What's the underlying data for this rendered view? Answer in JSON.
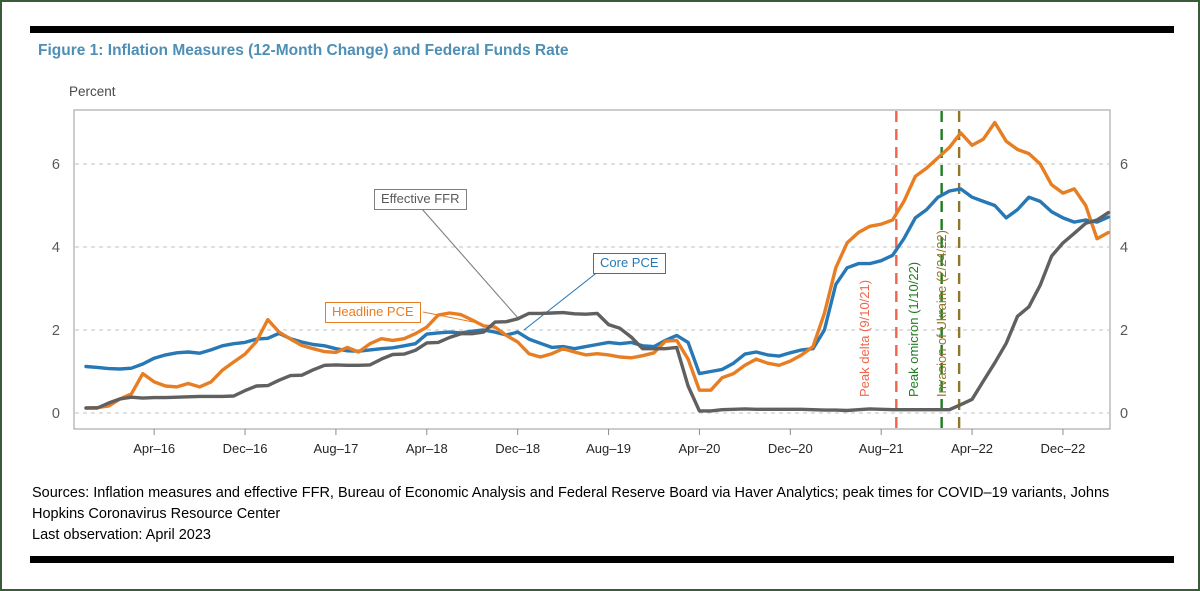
{
  "page": {
    "title": "Figure 1: Inflation Measures (12-Month Change) and Federal Funds Rate",
    "unit_label": "Percent",
    "sources": "Sources: Inflation measures and effective FFR, Bureau of Economic Analysis and Federal Reserve Board via Haver Analytics; peak times for COVID–19 variants, Johns Hopkins Coronavirus Resource Center",
    "last_observation": "Last observation: April 2023"
  },
  "chart_data": {
    "type": "line",
    "title": "Figure 1: Inflation Measures (12-Month Change) and Federal Funds Rate",
    "ylabel": "Percent",
    "ylim": [
      -0.4,
      7.3
    ],
    "y_ticks": [
      0,
      2,
      4,
      6
    ],
    "grid": "horizontal-dashed",
    "y_axis_labels": "both-sides",
    "months": [
      "Oct-15",
      "Nov-15",
      "Dec-15",
      "Jan-16",
      "Feb-16",
      "Mar-16",
      "Apr-16",
      "May-16",
      "Jun-16",
      "Jul-16",
      "Aug-16",
      "Sep-16",
      "Oct-16",
      "Nov-16",
      "Dec-16",
      "Jan-17",
      "Feb-17",
      "Mar-17",
      "Apr-17",
      "May-17",
      "Jun-17",
      "Jul-17",
      "Aug-17",
      "Sep-17",
      "Oct-17",
      "Nov-17",
      "Dec-17",
      "Jan-18",
      "Feb-18",
      "Mar-18",
      "Apr-18",
      "May-18",
      "Jun-18",
      "Jul-18",
      "Aug-18",
      "Sep-18",
      "Oct-18",
      "Nov-18",
      "Dec-18",
      "Jan-19",
      "Feb-19",
      "Mar-19",
      "Apr-19",
      "May-19",
      "Jun-19",
      "Jul-19",
      "Aug-19",
      "Sep-19",
      "Oct-19",
      "Nov-19",
      "Dec-19",
      "Jan-20",
      "Feb-20",
      "Mar-20",
      "Apr-20",
      "May-20",
      "Jun-20",
      "Jul-20",
      "Aug-20",
      "Sep-20",
      "Oct-20",
      "Nov-20",
      "Dec-20",
      "Jan-21",
      "Feb-21",
      "Mar-21",
      "Apr-21",
      "May-21",
      "Jun-21",
      "Jul-21",
      "Aug-21",
      "Sep-21",
      "Oct-21",
      "Nov-21",
      "Dec-21",
      "Jan-22",
      "Feb-22",
      "Mar-22",
      "Apr-22",
      "May-22",
      "Jun-22",
      "Jul-22",
      "Aug-22",
      "Sep-22",
      "Oct-22",
      "Nov-22",
      "Dec-22",
      "Jan-23",
      "Feb-23",
      "Mar-23",
      "Apr-23"
    ],
    "x_ticks": [
      {
        "index": 6,
        "label": "Apr–16"
      },
      {
        "index": 14,
        "label": "Dec–16"
      },
      {
        "index": 22,
        "label": "Aug–17"
      },
      {
        "index": 30,
        "label": "Apr–18"
      },
      {
        "index": 38,
        "label": "Dec–18"
      },
      {
        "index": 46,
        "label": "Aug–19"
      },
      {
        "index": 54,
        "label": "Apr–20"
      },
      {
        "index": 62,
        "label": "Dec–20"
      },
      {
        "index": 70,
        "label": "Aug–21"
      },
      {
        "index": 78,
        "label": "Apr–22"
      },
      {
        "index": 86,
        "label": "Dec–22"
      }
    ],
    "series": [
      {
        "name": "Effective FFR",
        "color": "#606060",
        "values": [
          0.12,
          0.12,
          0.24,
          0.34,
          0.38,
          0.36,
          0.37,
          0.37,
          0.38,
          0.39,
          0.4,
          0.4,
          0.4,
          0.41,
          0.54,
          0.65,
          0.66,
          0.79,
          0.9,
          0.91,
          1.04,
          1.15,
          1.16,
          1.15,
          1.15,
          1.16,
          1.3,
          1.41,
          1.42,
          1.51,
          1.69,
          1.7,
          1.82,
          1.91,
          1.91,
          1.95,
          2.19,
          2.2,
          2.27,
          2.4,
          2.4,
          2.41,
          2.42,
          2.39,
          2.38,
          2.4,
          2.13,
          2.04,
          1.83,
          1.55,
          1.55,
          1.55,
          1.58,
          0.65,
          0.05,
          0.05,
          0.08,
          0.09,
          0.1,
          0.09,
          0.09,
          0.09,
          0.09,
          0.09,
          0.08,
          0.07,
          0.07,
          0.06,
          0.08,
          0.1,
          0.09,
          0.08,
          0.08,
          0.08,
          0.08,
          0.08,
          0.08,
          0.2,
          0.33,
          0.77,
          1.21,
          1.68,
          2.33,
          2.56,
          3.08,
          3.78,
          4.1,
          4.33,
          4.57,
          4.65,
          4.83
        ]
      },
      {
        "name": "Core PCE",
        "color": "#2878B5",
        "values": [
          1.12,
          1.1,
          1.07,
          1.06,
          1.08,
          1.18,
          1.32,
          1.4,
          1.45,
          1.47,
          1.44,
          1.52,
          1.62,
          1.67,
          1.7,
          1.78,
          1.8,
          1.92,
          1.79,
          1.71,
          1.65,
          1.62,
          1.55,
          1.5,
          1.49,
          1.52,
          1.55,
          1.57,
          1.62,
          1.67,
          1.9,
          1.93,
          1.95,
          1.93,
          1.97,
          2.0,
          1.95,
          1.88,
          1.95,
          1.78,
          1.68,
          1.58,
          1.6,
          1.55,
          1.6,
          1.65,
          1.7,
          1.67,
          1.7,
          1.62,
          1.6,
          1.75,
          1.87,
          1.7,
          0.95,
          1.0,
          1.05,
          1.2,
          1.42,
          1.47,
          1.4,
          1.37,
          1.45,
          1.52,
          1.55,
          2.0,
          3.1,
          3.5,
          3.6,
          3.6,
          3.67,
          3.8,
          4.2,
          4.7,
          4.9,
          5.2,
          5.35,
          5.4,
          5.2,
          5.1,
          5.0,
          4.7,
          4.9,
          5.2,
          5.1,
          4.85,
          4.7,
          4.6,
          4.65,
          4.6,
          4.72
        ]
      },
      {
        "name": "Headline PCE",
        "color": "#E87E23",
        "values": [
          0.12,
          0.13,
          0.17,
          0.34,
          0.46,
          0.95,
          0.75,
          0.65,
          0.63,
          0.71,
          0.63,
          0.75,
          1.03,
          1.23,
          1.42,
          1.72,
          2.25,
          1.95,
          1.78,
          1.63,
          1.55,
          1.48,
          1.46,
          1.58,
          1.47,
          1.67,
          1.79,
          1.75,
          1.79,
          1.91,
          2.07,
          2.36,
          2.41,
          2.37,
          2.24,
          2.1,
          2.07,
          1.87,
          1.71,
          1.43,
          1.35,
          1.43,
          1.55,
          1.47,
          1.4,
          1.43,
          1.4,
          1.35,
          1.33,
          1.38,
          1.45,
          1.73,
          1.75,
          1.3,
          0.55,
          0.55,
          0.85,
          0.95,
          1.15,
          1.3,
          1.2,
          1.15,
          1.25,
          1.4,
          1.6,
          2.4,
          3.5,
          4.1,
          4.35,
          4.5,
          4.55,
          4.65,
          5.1,
          5.7,
          5.9,
          6.15,
          6.4,
          6.75,
          6.45,
          6.6,
          7.0,
          6.55,
          6.35,
          6.25,
          6.0,
          5.5,
          5.3,
          5.4,
          5.0,
          4.2,
          4.35
        ]
      }
    ],
    "events": [
      {
        "id": "peak-delta",
        "label": "Peak delta (9/10/21)",
        "date": "9/10/21",
        "month_index": 71.33,
        "color": "#F0654C"
      },
      {
        "id": "peak-omicron",
        "label": "Peak omicron (1/10/22)",
        "date": "1/10/22",
        "month_index": 75.32,
        "color": "#1E7D20"
      },
      {
        "id": "ukraine-invasion",
        "label": "Invasion of Ukraine (2/24/22)",
        "date": "2/24/22",
        "month_index": 76.86,
        "color": "#90762B"
      }
    ]
  }
}
